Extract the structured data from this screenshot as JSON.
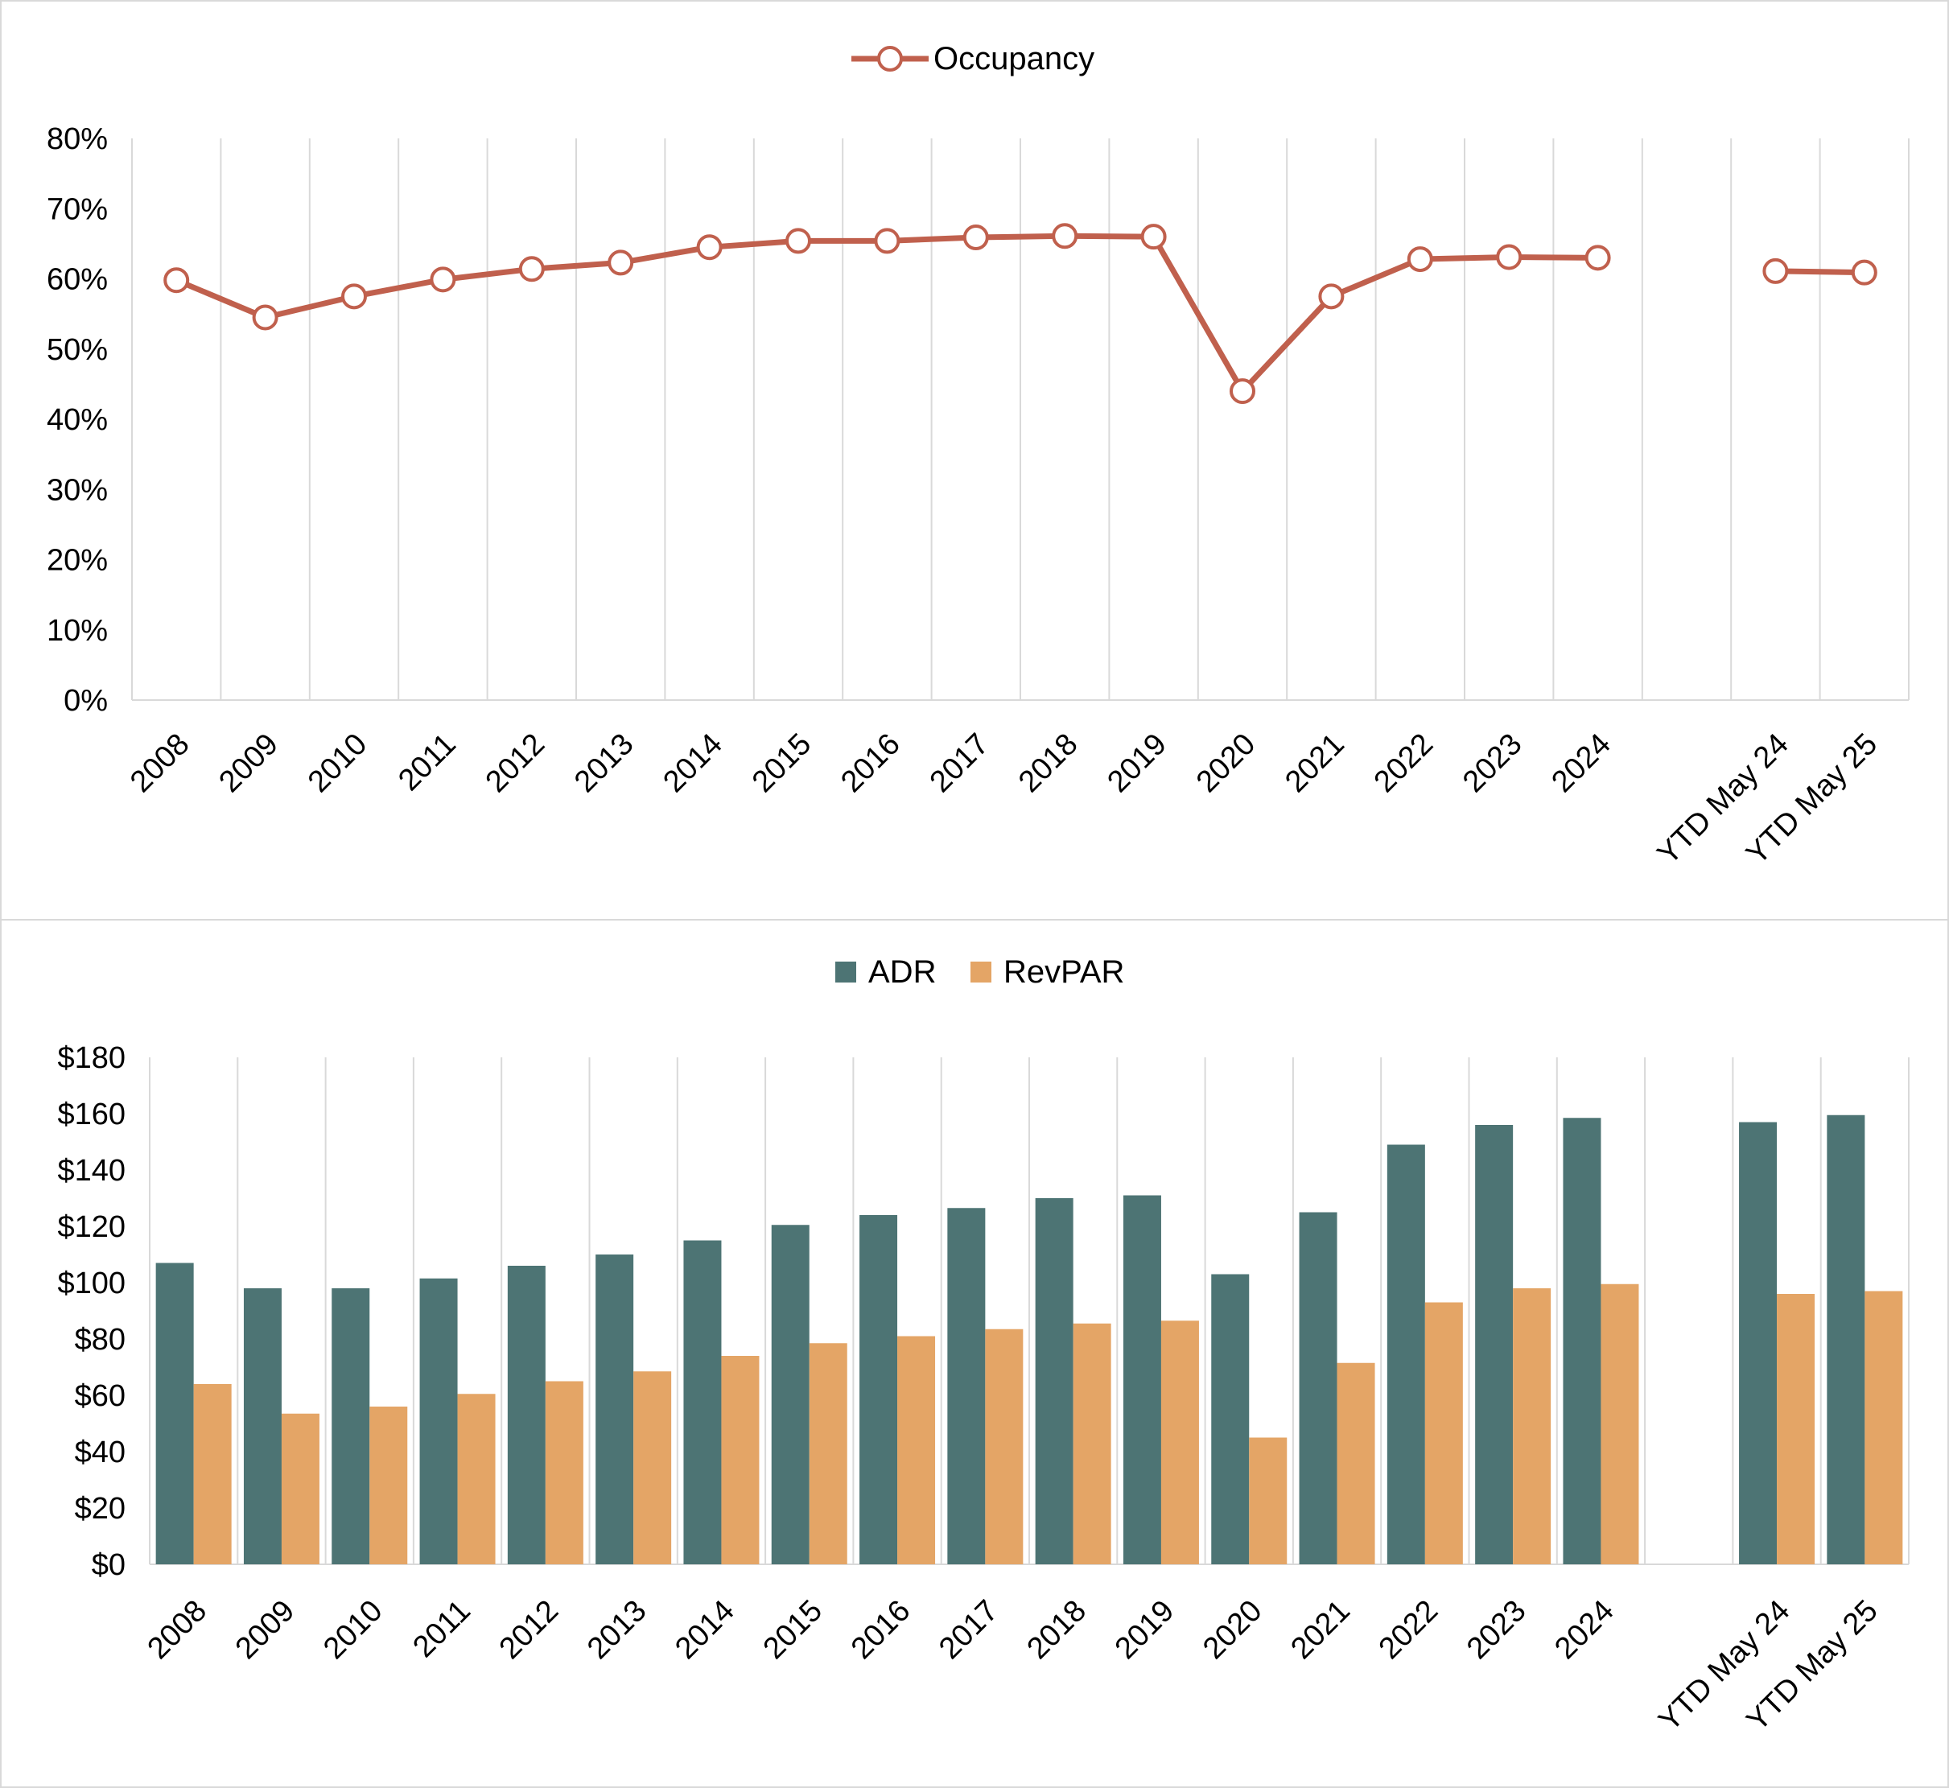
{
  "chart_data": [
    {
      "type": "line",
      "categories": [
        "2008",
        "2009",
        "2010",
        "2011",
        "2012",
        "2013",
        "2014",
        "2015",
        "2016",
        "2017",
        "2018",
        "2019",
        "2020",
        "2021",
        "2022",
        "2023",
        "2024",
        "",
        "YTD May 24",
        "YTD May 25"
      ],
      "series": [
        {
          "name": "Occupancy",
          "values": [
            59.8,
            54.5,
            57.5,
            59.9,
            61.4,
            62.3,
            64.5,
            65.4,
            65.4,
            65.9,
            66.1,
            66.0,
            44.0,
            57.5,
            62.8,
            63.1,
            63.0,
            null,
            61.1,
            60.9
          ],
          "color": "#c0604d"
        }
      ],
      "ylim": [
        0,
        80
      ],
      "yticks": [
        "0%",
        "10%",
        "20%",
        "30%",
        "40%",
        "50%",
        "60%",
        "70%",
        "80%"
      ],
      "legend": "top-center",
      "grid": "vertical"
    },
    {
      "type": "bar",
      "categories": [
        "2008",
        "2009",
        "2010",
        "2011",
        "2012",
        "2013",
        "2014",
        "2015",
        "2016",
        "2017",
        "2018",
        "2019",
        "2020",
        "2021",
        "2022",
        "2023",
        "2024",
        "",
        "YTD May 24",
        "YTD May 25"
      ],
      "series": [
        {
          "name": "ADR",
          "values": [
            107,
            98,
            98,
            101.5,
            106,
            110,
            115,
            120.5,
            124,
            126.5,
            130,
            131,
            103,
            125,
            149,
            156,
            158.5,
            null,
            157,
            159.5
          ],
          "color": "#4d7474"
        },
        {
          "name": "RevPAR",
          "values": [
            64,
            53.5,
            56,
            60.5,
            65,
            68.5,
            74,
            78.5,
            81,
            83.5,
            85.5,
            86.5,
            45,
            71.5,
            93,
            98,
            99.5,
            null,
            96,
            97
          ],
          "color": "#e4a566"
        }
      ],
      "ylim": [
        0,
        180
      ],
      "yticks": [
        "$0",
        "$20",
        "$40",
        "$60",
        "$80",
        "$100",
        "$120",
        "$140",
        "$160",
        "$180"
      ],
      "legend": "top-center",
      "grid": "vertical"
    }
  ]
}
